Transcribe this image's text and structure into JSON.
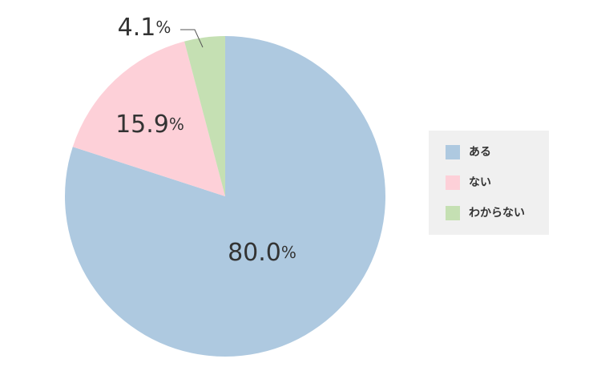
{
  "chart_data": {
    "type": "pie",
    "categories": [
      "ある",
      "ない",
      "わからない"
    ],
    "values": [
      80.0,
      15.9,
      4.1
    ],
    "value_labels": [
      "80.0%",
      "15.9%",
      "4.1%"
    ],
    "colors": [
      "#aec9e0",
      "#fdd0d8",
      "#c5e0b3"
    ],
    "legend": "right"
  }
}
